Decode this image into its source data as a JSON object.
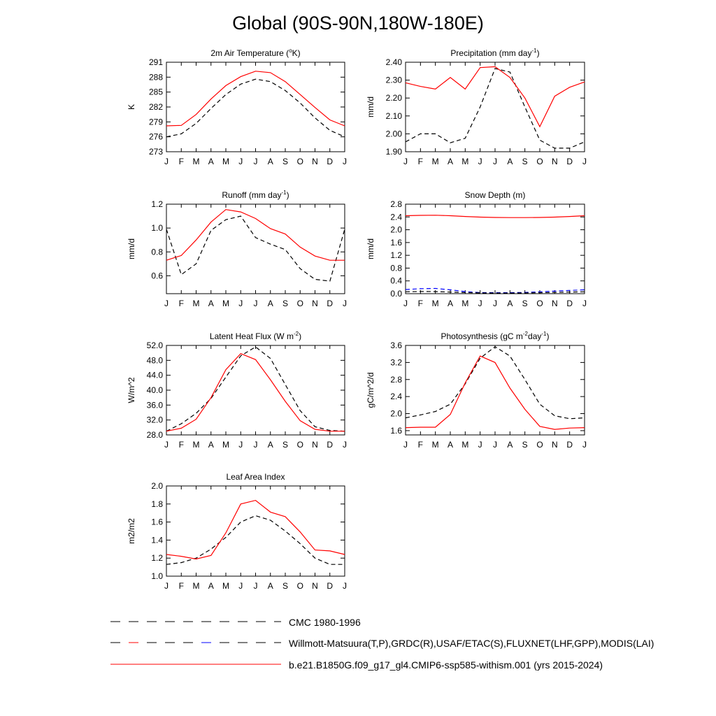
{
  "title": "Global (90S-90N,180W-180E)",
  "months": [
    "J",
    "F",
    "M",
    "A",
    "M",
    "J",
    "J",
    "A",
    "S",
    "O",
    "N",
    "D",
    "J"
  ],
  "chart_data": [
    {
      "type": "line",
      "title": "2m Air Temperature (",
      "title_sup": "o",
      "title_end": "K)",
      "ylabel": "K",
      "ylim": [
        273,
        291
      ],
      "yticks": [
        273,
        276,
        279,
        282,
        285,
        288,
        291
      ],
      "ytick_labels": [
        "273",
        "276",
        "279",
        "282",
        "285",
        "288",
        "291"
      ],
      "series": [
        {
          "name": "b.e21.B1850G.f09_g17_gl4.CMIP6-ssp585-withism.001 (yrs 2015-2024)",
          "style": "model",
          "values": [
            278.2,
            278.3,
            280.5,
            283.6,
            286.3,
            288.1,
            289.2,
            288.9,
            287.1,
            284.5,
            281.9,
            279.4,
            278.2
          ]
        },
        {
          "name": "Willmott-Matsuura(T,P)",
          "style": "obs",
          "values": [
            276.0,
            276.6,
            278.7,
            281.7,
            284.5,
            286.6,
            287.6,
            287.1,
            285.3,
            282.8,
            279.8,
            277.3,
            276.0
          ]
        }
      ]
    },
    {
      "type": "line",
      "title": "Precipitation (mm day",
      "title_sup": "-1",
      "title_end": ")",
      "ylabel": "mm/d",
      "ylim": [
        1.9,
        2.4
      ],
      "yticks": [
        1.9,
        2.0,
        2.1,
        2.2,
        2.3,
        2.4
      ],
      "ytick_labels": [
        "1.90",
        "2.00",
        "2.10",
        "2.20",
        "2.30",
        "2.40"
      ],
      "series": [
        {
          "name": "b.e21.B1850G.f09_g17_gl4.CMIP6-ssp585-withism.001 (yrs 2015-2024)",
          "style": "model",
          "values": [
            2.285,
            2.265,
            2.25,
            2.315,
            2.25,
            2.37,
            2.375,
            2.315,
            2.2,
            2.04,
            2.21,
            2.26,
            2.29
          ]
        },
        {
          "name": "Willmott-Matsuura(T,P)",
          "style": "obs",
          "values": [
            1.955,
            2.0,
            2.0,
            1.95,
            1.975,
            2.15,
            2.365,
            2.345,
            2.15,
            1.965,
            1.92,
            1.92,
            1.955
          ]
        }
      ]
    },
    {
      "type": "line",
      "title": "Runoff (mm day",
      "title_sup": "-1",
      "title_end": ")",
      "ylabel": "mm/d",
      "ylim": [
        0.45,
        1.2
      ],
      "yticks": [
        0.6,
        0.8,
        1.0,
        1.2
      ],
      "ytick_labels": [
        "0.6",
        "0.8",
        "1.0",
        "1.2"
      ],
      "series": [
        {
          "name": "b.e21.B1850G.f09_g17_gl4.CMIP6-ssp585-withism.001 (yrs 2015-2024)",
          "style": "model",
          "values": [
            0.73,
            0.77,
            0.9,
            1.05,
            1.155,
            1.135,
            1.08,
            0.995,
            0.95,
            0.84,
            0.765,
            0.73,
            0.73
          ]
        },
        {
          "name": "GRDC(R)",
          "style": "obs",
          "values": [
            0.99,
            0.61,
            0.7,
            0.98,
            1.07,
            1.1,
            0.92,
            0.865,
            0.82,
            0.66,
            0.57,
            0.555,
            0.99
          ]
        }
      ]
    },
    {
      "type": "line",
      "title": "Snow Depth (m)",
      "title_sup": "",
      "title_end": "",
      "ylabel": "mm/d",
      "ylim": [
        0.0,
        2.8
      ],
      "yticks": [
        0.0,
        0.4,
        0.8,
        1.2,
        1.6,
        2.0,
        2.4,
        2.8
      ],
      "ytick_labels": [
        "0.0",
        "0.4",
        "0.8",
        "1.2",
        "1.6",
        "2.0",
        "2.4",
        "2.8"
      ],
      "series": [
        {
          "name": "b.e21.B1850G.f09_g17_gl4.CMIP6-ssp585-withism.001 (yrs 2015-2024)",
          "style": "model",
          "values": [
            2.44,
            2.45,
            2.455,
            2.44,
            2.415,
            2.395,
            2.385,
            2.38,
            2.38,
            2.385,
            2.395,
            2.415,
            2.44
          ]
        },
        {
          "name": "USAF/ETAC(S)",
          "style": "obs-blue",
          "values": [
            0.13,
            0.155,
            0.165,
            0.12,
            0.065,
            0.035,
            0.03,
            0.03,
            0.04,
            0.06,
            0.08,
            0.1,
            0.12
          ]
        },
        {
          "name": "CMC 1980-1996",
          "style": "cmc",
          "values": [
            0.06,
            0.07,
            0.065,
            0.05,
            0.035,
            0.025,
            0.02,
            0.02,
            0.025,
            0.03,
            0.04,
            0.05,
            0.06
          ]
        }
      ]
    },
    {
      "type": "line",
      "title": "Latent Heat Flux (W m",
      "title_sup": "-2",
      "title_end": ")",
      "ylabel": "W/m^2",
      "ylim": [
        28.0,
        52.0
      ],
      "yticks": [
        28,
        32,
        36,
        40,
        44,
        48,
        52
      ],
      "ytick_labels": [
        "28.0",
        "32.0",
        "36.0",
        "40.0",
        "44.0",
        "48.0",
        "52.0"
      ],
      "series": [
        {
          "name": "b.e21.B1850G.f09_g17_gl4.CMIP6-ssp585-withism.001 (yrs 2015-2024)",
          "style": "model",
          "values": [
            29.0,
            29.8,
            32.2,
            38.0,
            45.5,
            49.8,
            48.2,
            42.8,
            37.0,
            31.8,
            29.5,
            29.0,
            29.0
          ]
        },
        {
          "name": "FLUXNET(LHF)",
          "style": "obs",
          "values": [
            29.0,
            31.0,
            33.8,
            37.8,
            43.5,
            49.2,
            51.6,
            48.5,
            41.5,
            34.5,
            30.2,
            29.2,
            29.0
          ]
        }
      ]
    },
    {
      "type": "line",
      "title": "Photosynthesis (gC m",
      "title_sup": "-2",
      "title_mid": "day",
      "title_sup2": "-1",
      "title_end": ")",
      "ylabel": "gC/m^2/d",
      "ylim": [
        1.5,
        3.6
      ],
      "yticks": [
        1.6,
        2.0,
        2.4,
        2.8,
        3.2,
        3.6
      ],
      "ytick_labels": [
        "1.6",
        "2.0",
        "2.4",
        "2.8",
        "3.2",
        "3.6"
      ],
      "series": [
        {
          "name": "b.e21.B1850G.f09_g17_gl4.CMIP6-ssp585-withism.001 (yrs 2015-2024)",
          "style": "model",
          "values": [
            1.67,
            1.68,
            1.68,
            1.98,
            2.72,
            3.35,
            3.2,
            2.6,
            2.1,
            1.7,
            1.63,
            1.66,
            1.67
          ]
        },
        {
          "name": "FLUXNET(GPP)",
          "style": "obs",
          "values": [
            1.9,
            1.97,
            2.05,
            2.22,
            2.7,
            3.3,
            3.57,
            3.35,
            2.8,
            2.22,
            1.95,
            1.88,
            1.9
          ]
        }
      ]
    },
    {
      "type": "line",
      "title": "Leaf Area Index",
      "title_sup": "",
      "title_end": "",
      "ylabel": "m2/m2",
      "ylim": [
        1.0,
        2.0
      ],
      "yticks": [
        1.0,
        1.2,
        1.4,
        1.6,
        1.8,
        2.0
      ],
      "ytick_labels": [
        "1.0",
        "1.2",
        "1.4",
        "1.6",
        "1.8",
        "2.0"
      ],
      "series": [
        {
          "name": "b.e21.B1850G.f09_g17_gl4.CMIP6-ssp585-withism.001 (yrs 2015-2024)",
          "style": "model",
          "values": [
            1.24,
            1.22,
            1.19,
            1.23,
            1.48,
            1.8,
            1.84,
            1.71,
            1.66,
            1.49,
            1.29,
            1.28,
            1.24
          ]
        },
        {
          "name": "MODIS(LAI)",
          "style": "obs",
          "values": [
            1.13,
            1.15,
            1.2,
            1.3,
            1.43,
            1.6,
            1.67,
            1.62,
            1.5,
            1.36,
            1.2,
            1.13,
            1.13
          ]
        }
      ]
    }
  ],
  "legend": {
    "items": [
      {
        "label": "CMC 1980-1996",
        "style": "cmc"
      },
      {
        "label": "Willmott-Matsuura(T,P),GRDC(R),USAF/ETAC(S),FLUXNET(LHF,GPP),MODIS(LAI)",
        "style": "obs-mixed"
      },
      {
        "label": "b.e21.B1850G.f09_g17_gl4.CMIP6-ssp585-withism.001 (yrs 2015-2024)",
        "style": "model"
      }
    ]
  },
  "colors": {
    "model": "#ff0000",
    "obs": "#000000",
    "obs_blue": "#0000ff",
    "axis": "#000000"
  }
}
